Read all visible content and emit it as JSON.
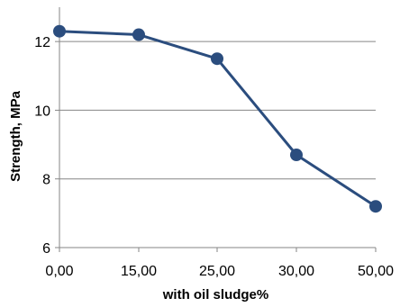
{
  "chart_data": {
    "type": "line",
    "categories": [
      "0,00",
      "15,00",
      "25,00",
      "30,00",
      "50,00"
    ],
    "series": [
      {
        "values": [
          12.3,
          12.2,
          11.5,
          8.7,
          7.2
        ]
      }
    ],
    "y_ticks": [
      "6",
      "8",
      "10",
      "12"
    ],
    "xlabel": "with oil sludge%",
    "ylabel": "Strength, MPa",
    "ylim": [
      6,
      13
    ],
    "grid": "horizontal",
    "legend": "none",
    "colors": {
      "line": "#2b4d7e",
      "marker": "#2b4d7e",
      "grid": "#868686",
      "axis": "#868686"
    }
  }
}
